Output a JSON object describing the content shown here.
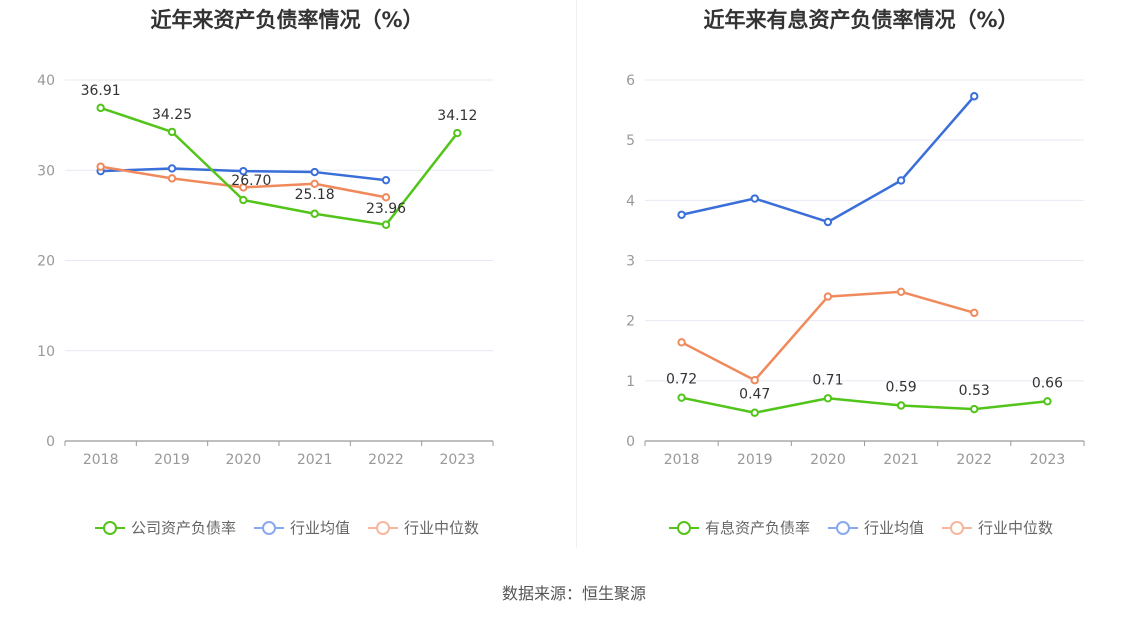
{
  "colors": {
    "company": "#52c41a",
    "industry_avg": "#3a6fd9",
    "industry_median": "#f08a5d",
    "company_legend": "#52c41a",
    "avg_legend": "#8aa8ef",
    "median_legend": "#f6b79c",
    "grid": "#e6e9f2",
    "axis": "#999999"
  },
  "chart_data": [
    {
      "type": "line",
      "title": "近年来资产负债率情况（%）",
      "categories": [
        "2018",
        "2019",
        "2020",
        "2021",
        "2022",
        "2023"
      ],
      "y_ticks": [
        "0",
        "10",
        "20",
        "30",
        "40"
      ],
      "ylim": [
        0,
        40
      ],
      "grid": true,
      "legend_position": "bottom",
      "series": [
        {
          "name": "公司资产负债率",
          "values": [
            36.91,
            34.25,
            26.7,
            25.18,
            23.96,
            34.12
          ],
          "labels": [
            "36.91",
            "34.25",
            "26.70",
            "25.18",
            "23.96",
            "34.12"
          ]
        },
        {
          "name": "行业均值",
          "values": [
            29.9,
            30.2,
            29.9,
            29.8,
            28.9,
            null
          ]
        },
        {
          "name": "行业中位数",
          "values": [
            30.4,
            29.1,
            28.1,
            28.5,
            27.0,
            null
          ]
        }
      ]
    },
    {
      "type": "line",
      "title": "近年来有息资产负债率情况（%）",
      "categories": [
        "2018",
        "2019",
        "2020",
        "2021",
        "2022",
        "2023"
      ],
      "y_ticks": [
        "0",
        "1",
        "2",
        "3",
        "4",
        "5",
        "6"
      ],
      "ylim": [
        0,
        6
      ],
      "grid": true,
      "legend_position": "bottom",
      "series": [
        {
          "name": "有息资产负债率",
          "values": [
            0.72,
            0.47,
            0.71,
            0.59,
            0.53,
            0.66
          ],
          "labels": [
            "0.72",
            "0.47",
            "0.71",
            "0.59",
            "0.53",
            "0.66"
          ]
        },
        {
          "name": "行业均值",
          "values": [
            3.76,
            4.03,
            3.64,
            4.33,
            5.73,
            null
          ]
        },
        {
          "name": "行业中位数",
          "values": [
            1.64,
            1.01,
            2.4,
            2.48,
            2.13,
            null
          ]
        }
      ]
    }
  ],
  "source": "数据来源：恒生聚源"
}
